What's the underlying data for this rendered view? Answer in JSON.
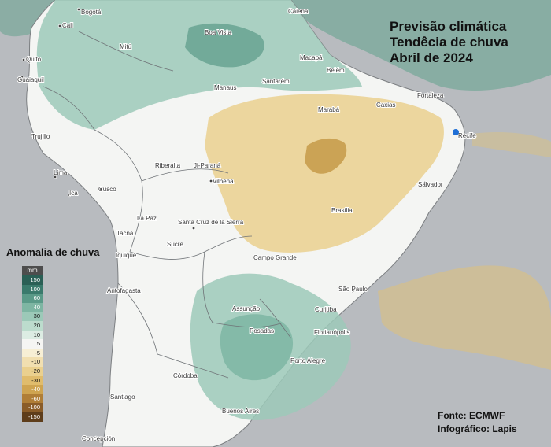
{
  "title": {
    "line1": "Previsão climática",
    "line2": "Tendêcia de chuva",
    "line3": "Abril de 2024"
  },
  "legend": {
    "title": "Anomalia de chuva",
    "unit": "mm",
    "items": [
      {
        "label": "150",
        "color": "#2a5f55"
      },
      {
        "label": "100",
        "color": "#3a7a6c"
      },
      {
        "label": "60",
        "color": "#5a9a88"
      },
      {
        "label": "40",
        "color": "#7eb6a3"
      },
      {
        "label": "30",
        "color": "#9cc9b8"
      },
      {
        "label": "20",
        "color": "#bcdccd"
      },
      {
        "label": "10",
        "color": "#dcece3"
      },
      {
        "label": "5",
        "color": "#f5f5f3"
      },
      {
        "label": "-5",
        "color": "#f7efd5"
      },
      {
        "label": "-10",
        "color": "#f1dfb0"
      },
      {
        "label": "-20",
        "color": "#ead08e"
      },
      {
        "label": "-30",
        "color": "#e0bc6c"
      },
      {
        "label": "-40",
        "color": "#cfa450"
      },
      {
        "label": "-60",
        "color": "#b07e36"
      },
      {
        "label": "-100",
        "color": "#8a5c28"
      },
      {
        "label": "-150",
        "color": "#5e3d1b"
      }
    ]
  },
  "source": {
    "line1": "Fonte: ECMWF",
    "line2": "Infográfico: Lapis"
  },
  "cities": [
    "Bogotá",
    "Cali",
    "Quito",
    "Guaiaquil",
    "Trujillo",
    "Lima",
    "Ica",
    "Cusco",
    "Tacna",
    "Iquique",
    "Antofagasta",
    "La Paz",
    "Sucre",
    "Santa Cruz de la Sierra",
    "Riberalta",
    "Ji-Paraná",
    "Vilhena",
    "Manaus",
    "Santarém",
    "Belém",
    "Macapá",
    "Boa Vista",
    "Mitú",
    "Caiena",
    "Fortaleza",
    "Caxias",
    "Marabá",
    "Recife",
    "Salvador",
    "Brasília",
    "Campo Grande",
    "São Paulo",
    "Curitiba",
    "Florianópolis",
    "Porto Alegre",
    "Assunção",
    "Posadas",
    "Córdoba",
    "Santiago",
    "Buenos Aires",
    "Concepción"
  ],
  "highlight_color": "#1f6fd6"
}
